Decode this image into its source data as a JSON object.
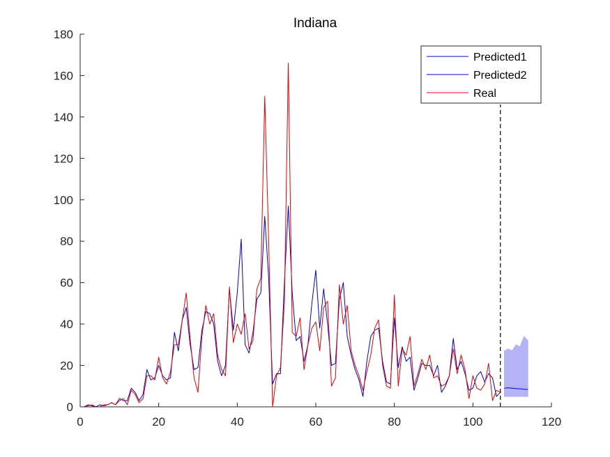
{
  "chart_data": {
    "type": "line",
    "title": "Indiana",
    "xlabel": "",
    "ylabel": "",
    "xlim": [
      0,
      120
    ],
    "ylim": [
      0,
      180
    ],
    "xticks": [
      0,
      20,
      40,
      60,
      80,
      100,
      120
    ],
    "yticks": [
      0,
      20,
      40,
      60,
      80,
      100,
      120,
      140,
      160,
      180
    ],
    "grid": false,
    "legend_position": "top-right",
    "forecast_start_x": 107,
    "series": [
      {
        "name": "Predicted1",
        "color": "#0000cc",
        "x": [
          1,
          2,
          3,
          4,
          5,
          6,
          7,
          8,
          9,
          10,
          11,
          12,
          13,
          14,
          15,
          16,
          17,
          18,
          19,
          20,
          21,
          22,
          23,
          24,
          25,
          26,
          27,
          28,
          29,
          30,
          31,
          32,
          33,
          34,
          35,
          36,
          37,
          38,
          39,
          40,
          41,
          42,
          43,
          44,
          45,
          46,
          47,
          48,
          49,
          50,
          51,
          52,
          53,
          54,
          55,
          56,
          57,
          58,
          59,
          60,
          61,
          62,
          63,
          64,
          65,
          66,
          67,
          68,
          69,
          70,
          71,
          72,
          73,
          74,
          75,
          76,
          77,
          78,
          79,
          80,
          81,
          82,
          83,
          84,
          85,
          86,
          87,
          88,
          89,
          90,
          91,
          92,
          93,
          94,
          95,
          96,
          97,
          98,
          99,
          100,
          101,
          102,
          103,
          104,
          105,
          106,
          107
        ],
        "values": [
          0,
          1,
          0.5,
          0,
          1,
          0.5,
          1,
          2,
          1,
          4,
          3,
          3,
          9,
          7,
          3,
          6,
          18,
          13,
          14,
          20,
          15,
          13,
          14,
          36,
          27,
          42,
          48,
          30,
          18,
          19,
          37,
          46,
          45,
          40,
          22,
          15,
          20,
          57,
          37,
          55,
          81,
          30,
          26,
          36,
          52,
          55,
          92,
          62,
          11,
          16,
          16,
          60,
          97,
          55,
          32,
          34,
          22,
          30,
          50,
          66,
          38,
          57,
          40,
          20,
          21,
          52,
          60,
          34,
          25,
          18,
          13,
          5,
          22,
          34,
          37,
          38,
          22,
          12,
          11,
          43,
          19,
          29,
          22,
          24,
          8,
          14,
          21,
          20,
          20,
          15,
          20,
          7,
          10,
          15,
          33,
          18,
          22,
          16,
          8,
          9,
          15,
          17,
          12,
          16,
          14,
          5,
          7
        ]
      },
      {
        "name": "Predicted2",
        "color": "#0000cc",
        "x": [
          108,
          109,
          110,
          111,
          112,
          113,
          114
        ],
        "values": [
          9,
          9.2,
          9,
          8.8,
          8.7,
          8.5,
          8.4
        ],
        "band_lower": [
          5,
          5,
          5,
          5,
          5,
          5,
          5
        ],
        "band_upper": [
          27,
          28,
          27,
          30,
          29,
          34,
          32
        ],
        "band_color": "#b3b3f5"
      },
      {
        "name": "Real",
        "color": "#e60000",
        "x": [
          1,
          2,
          3,
          4,
          5,
          6,
          7,
          8,
          9,
          10,
          11,
          12,
          13,
          14,
          15,
          16,
          17,
          18,
          19,
          20,
          21,
          22,
          23,
          24,
          25,
          26,
          27,
          28,
          29,
          30,
          31,
          32,
          33,
          34,
          35,
          36,
          37,
          38,
          39,
          40,
          41,
          42,
          43,
          44,
          45,
          46,
          47,
          48,
          49,
          50,
          51,
          52,
          53,
          54,
          55,
          56,
          57,
          58,
          59,
          60,
          61,
          62,
          63,
          64,
          65,
          66,
          67,
          68,
          69,
          70,
          71,
          72,
          73,
          74,
          75,
          76,
          77,
          78,
          79,
          80,
          81,
          82,
          83,
          84,
          85,
          86,
          87,
          88,
          89,
          90,
          91,
          92,
          93,
          94,
          95,
          96,
          97,
          98,
          99,
          100,
          101,
          102,
          103,
          104,
          105,
          106,
          107
        ],
        "values": [
          0,
          0.5,
          1,
          0,
          0,
          1,
          1,
          2,
          1,
          3,
          4,
          1,
          8,
          6,
          2,
          4,
          15,
          15,
          13,
          24,
          14,
          11,
          17,
          30,
          30,
          42,
          55,
          33,
          14,
          7,
          34,
          49,
          40,
          45,
          25,
          18,
          15,
          58,
          31,
          40,
          35,
          45,
          28,
          32,
          57,
          62,
          150,
          80,
          0,
          15,
          19,
          50,
          166,
          36,
          34,
          43,
          18,
          30,
          38,
          41,
          27,
          48,
          51,
          10,
          14,
          59,
          40,
          49,
          27,
          20,
          15,
          8,
          17,
          25,
          38,
          42,
          20,
          10,
          9,
          54,
          10,
          28,
          25,
          34,
          10,
          16,
          23,
          18,
          25,
          14,
          15,
          10,
          11,
          15,
          28,
          16,
          25,
          18,
          4,
          15,
          9,
          8,
          11,
          21,
          3,
          8,
          7
        ]
      }
    ]
  }
}
